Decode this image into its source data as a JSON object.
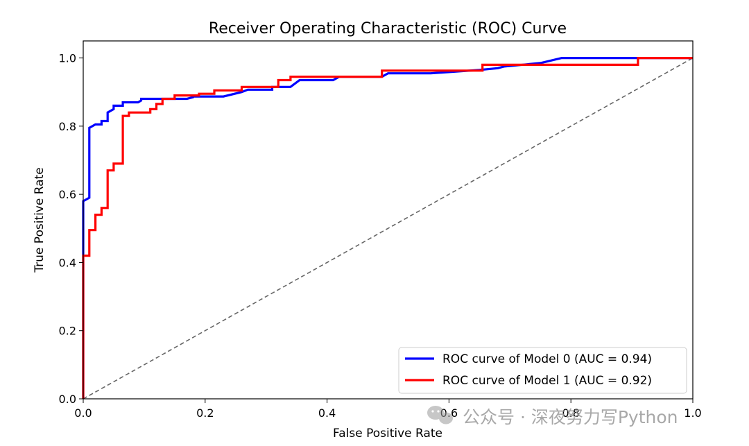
{
  "chart_data": {
    "type": "line",
    "title": "Receiver Operating Characteristic (ROC) Curve",
    "xlabel": "False Positive Rate",
    "ylabel": "True Positive Rate",
    "xlim": [
      0.0,
      1.0
    ],
    "ylim": [
      0.0,
      1.05
    ],
    "xticks": [
      "0.0",
      "0.2",
      "0.4",
      "0.6",
      "0.8",
      "1.0"
    ],
    "yticks": [
      "0.0",
      "0.2",
      "0.4",
      "0.6",
      "0.8",
      "1.0"
    ],
    "grid": false,
    "legend_position": "lower-right",
    "series": [
      {
        "name": "ROC curve of Model 0 (AUC = 0.94)",
        "color": "#0000ff",
        "x": [
          0.0,
          0.0,
          0.0,
          0.01,
          0.01,
          0.02,
          0.03,
          0.03,
          0.04,
          0.04,
          0.05,
          0.05,
          0.06,
          0.065,
          0.065,
          0.09,
          0.095,
          0.095,
          0.13,
          0.17,
          0.18,
          0.18,
          0.23,
          0.26,
          0.27,
          0.31,
          0.31,
          0.34,
          0.355,
          0.41,
          0.42,
          0.49,
          0.5,
          0.57,
          0.65,
          0.68,
          0.69,
          0.75,
          0.785,
          0.9,
          1.0
        ],
        "y": [
          0.0,
          0.42,
          0.58,
          0.59,
          0.795,
          0.805,
          0.805,
          0.815,
          0.815,
          0.84,
          0.85,
          0.86,
          0.86,
          0.86,
          0.87,
          0.87,
          0.875,
          0.88,
          0.88,
          0.88,
          0.885,
          0.887,
          0.887,
          0.9,
          0.907,
          0.907,
          0.915,
          0.915,
          0.935,
          0.935,
          0.945,
          0.945,
          0.955,
          0.955,
          0.965,
          0.97,
          0.975,
          0.985,
          1.0,
          1.0,
          1.0
        ]
      },
      {
        "name": "ROC curve of Model 1 (AUC = 0.92)",
        "color": "#ff0000",
        "x": [
          0.0,
          0.0,
          0.01,
          0.01,
          0.02,
          0.02,
          0.03,
          0.03,
          0.04,
          0.04,
          0.05,
          0.05,
          0.065,
          0.065,
          0.075,
          0.075,
          0.11,
          0.11,
          0.12,
          0.12,
          0.13,
          0.13,
          0.15,
          0.15,
          0.19,
          0.19,
          0.215,
          0.215,
          0.26,
          0.26,
          0.32,
          0.32,
          0.34,
          0.34,
          0.42,
          0.42,
          0.49,
          0.49,
          0.65,
          0.655,
          0.655,
          0.7,
          0.7,
          0.91,
          0.91,
          1.0
        ],
        "y": [
          0.0,
          0.42,
          0.42,
          0.495,
          0.495,
          0.54,
          0.54,
          0.56,
          0.56,
          0.67,
          0.67,
          0.69,
          0.69,
          0.83,
          0.83,
          0.84,
          0.84,
          0.85,
          0.85,
          0.865,
          0.865,
          0.88,
          0.88,
          0.89,
          0.89,
          0.895,
          0.895,
          0.905,
          0.905,
          0.915,
          0.915,
          0.935,
          0.935,
          0.945,
          0.945,
          0.945,
          0.945,
          0.963,
          0.963,
          0.963,
          0.98,
          0.98,
          0.98,
          0.98,
          1.0,
          1.0
        ]
      }
    ],
    "reference_line": {
      "x": [
        0.0,
        1.0
      ],
      "y": [
        0.0,
        1.0
      ],
      "style": "dashed",
      "color": "#666666"
    }
  },
  "watermark": {
    "icon": "wechat-icon",
    "text": "公众号 · 深夜努力写Python",
    "color": "#9a9a9a"
  }
}
